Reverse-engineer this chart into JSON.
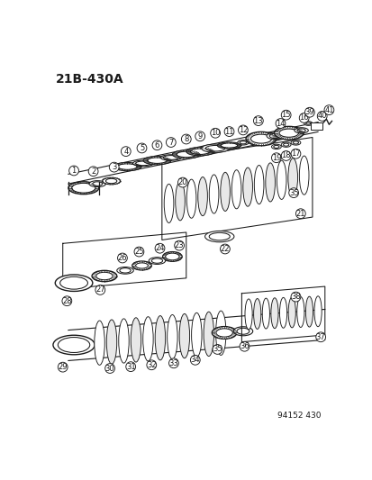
{
  "title": "21B-430A",
  "catalog_num": "94152 430",
  "bg_color": "#ffffff",
  "line_color": "#1a1a1a",
  "label_fontsize": 6.5,
  "title_fontsize": 10
}
